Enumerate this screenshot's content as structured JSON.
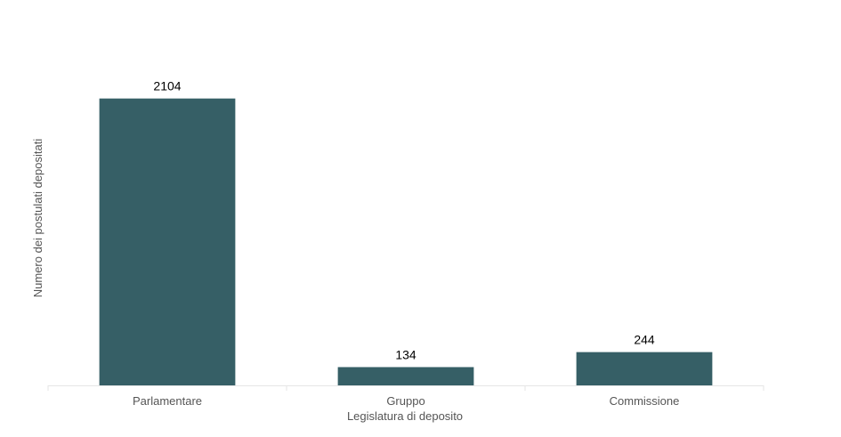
{
  "chart_data": {
    "type": "bar",
    "x_label": "Legislatura di deposito",
    "y_label": "Numero dei postulati depositati",
    "categories": [
      "Parlamentare",
      "Gruppo",
      "Commissione"
    ],
    "values": [
      2104,
      134,
      244
    ],
    "color": "#365f66",
    "ylim": [
      0,
      2500
    ]
  }
}
